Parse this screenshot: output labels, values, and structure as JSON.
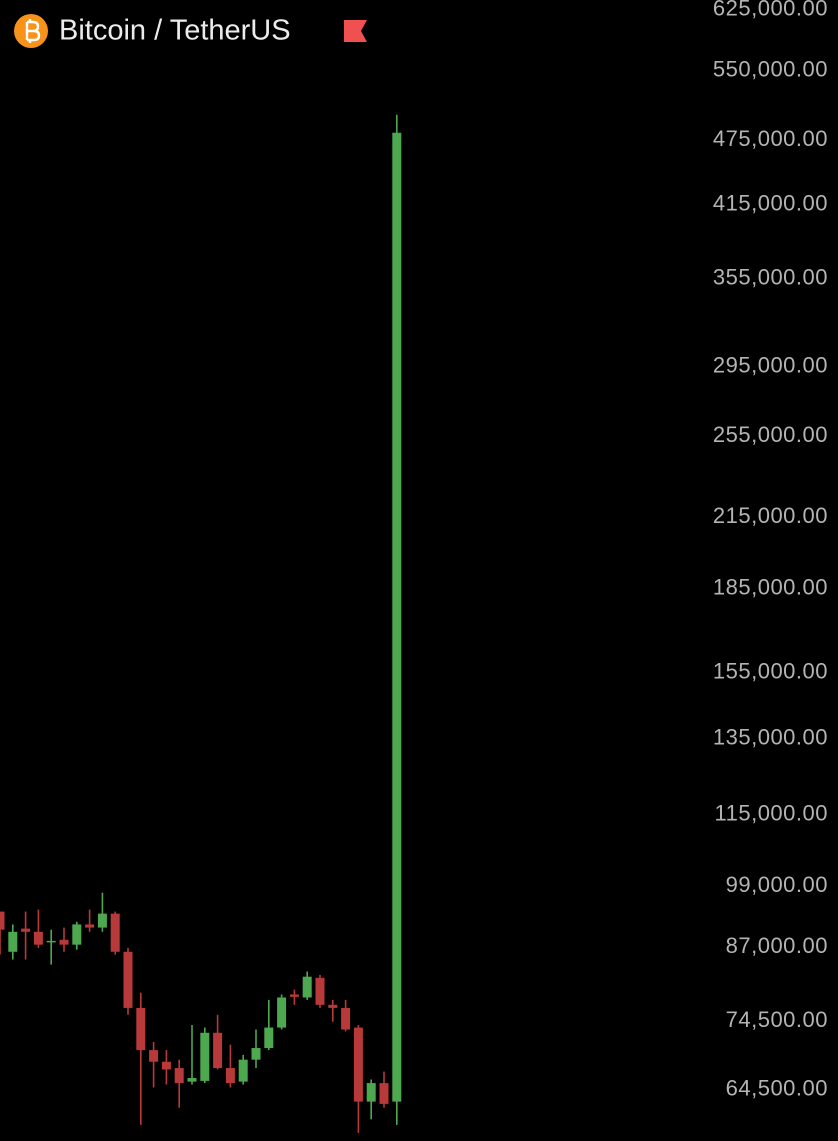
{
  "chart_data": {
    "type": "candlestick",
    "title": "Bitcoin / TetherUS",
    "log_scale": true,
    "grid": false,
    "up_color": "#4ea84f",
    "down_color": "#b8393a",
    "ylim": [
      57900,
      638000
    ],
    "yticks": [
      {
        "value": 625000,
        "label": "625,000.00"
      },
      {
        "value": 550000,
        "label": "550,000.00"
      },
      {
        "value": 475000,
        "label": "475,000.00"
      },
      {
        "value": 415000,
        "label": "415,000.00"
      },
      {
        "value": 355000,
        "label": "355,000.00"
      },
      {
        "value": 295000,
        "label": "295,000.00"
      },
      {
        "value": 255000,
        "label": "255,000.00"
      },
      {
        "value": 215000,
        "label": "215,000.00"
      },
      {
        "value": 185000,
        "label": "185,000.00"
      },
      {
        "value": 155000,
        "label": "155,000.00"
      },
      {
        "value": 135000,
        "label": "135,000.00"
      },
      {
        "value": 115000,
        "label": "115,000.00"
      },
      {
        "value": 99000,
        "label": "99,000.00"
      },
      {
        "value": 87000,
        "label": "87,000.00"
      },
      {
        "value": 74500,
        "label": "74,500.00"
      },
      {
        "value": 64500,
        "label": "64,500.00"
      }
    ],
    "open": [
      93800,
      86200,
      90500,
      89900,
      88000,
      88400,
      87500,
      91300,
      90700,
      93400,
      86200,
      76600,
      70100,
      68400,
      67500,
      65600,
      65700,
      72700,
      67500,
      65600,
      68700,
      70400,
      73500,
      78800,
      78300,
      81600,
      77100,
      76600,
      73500,
      62900,
      65400,
      62900
    ],
    "high": [
      93800,
      91300,
      93800,
      94200,
      90300,
      90700,
      91800,
      94200,
      97600,
      93800,
      86900,
      79100,
      71300,
      70100,
      68700,
      73900,
      73500,
      75500,
      70900,
      69400,
      73200,
      77900,
      78800,
      79600,
      82700,
      82100,
      77900,
      77900,
      73900,
      65900,
      67000,
      501200
    ],
    "low": [
      85700,
      84800,
      84800,
      86900,
      83900,
      86200,
      86600,
      89900,
      89900,
      85700,
      75500,
      59900,
      64800,
      65200,
      62100,
      65200,
      65400,
      67300,
      64800,
      65200,
      67500,
      70100,
      73200,
      77100,
      77900,
      76600,
      74400,
      72900,
      58900,
      60600,
      62100,
      59900
    ],
    "close": [
      90300,
      89900,
      89900,
      87500,
      88200,
      87500,
      91300,
      90700,
      93400,
      86200,
      76600,
      70100,
      68400,
      67300,
      65400,
      66100,
      72700,
      67500,
      65400,
      68700,
      70400,
      73500,
      78300,
      78400,
      81800,
      77100,
      76600,
      73200,
      62900,
      65400,
      62600,
      482600
    ]
  }
}
